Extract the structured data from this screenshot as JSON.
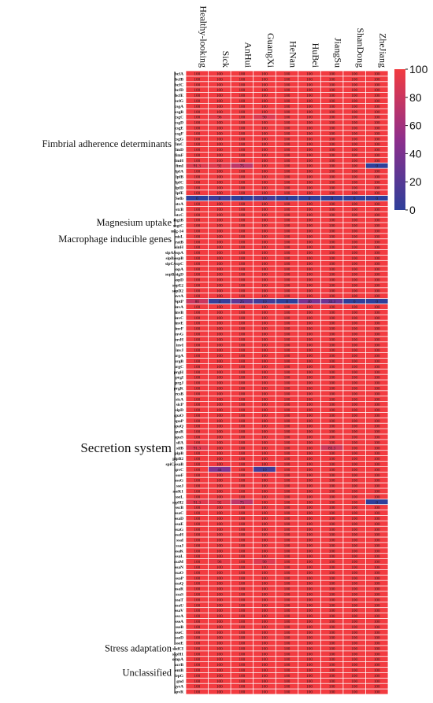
{
  "chart_data": {
    "type": "heatmap",
    "title": "",
    "xlabel": "",
    "ylabel": "",
    "columns": [
      "Healthy-looking",
      "Sick",
      "AnHui",
      "GuangXi",
      "HeNan",
      "HuBei",
      "JiangSu",
      "ShanDong",
      "ZheJiang"
    ],
    "rows": [
      "bcfA",
      "bcfB",
      "bcfC",
      "bcfD",
      "bcfE",
      "bcfG",
      "csgA",
      "csgB",
      "csgC",
      "csgD",
      "csgE",
      "csgF",
      "csgG",
      "fimC",
      "fimD",
      "fimF",
      "fimH",
      "fimI",
      "lpfA",
      "lpfB",
      "lpfC",
      "lpfD",
      "lpfE",
      "Sefb",
      "stcA",
      "stcB",
      "stcC",
      "mgtB",
      "mgtC",
      "mig-14",
      "misL",
      "ratB",
      "sinH",
      "sipA/sspA",
      "sipB/sspB",
      "sipC/sspC",
      "sopA",
      "sopB/sigD",
      "sopD",
      "sopE2",
      "sopD2",
      "avrA",
      "SptP",
      "invA",
      "invB",
      "invC",
      "invE",
      "invF",
      "invG",
      "invH",
      "invI",
      "invJ",
      "orgA",
      "orgB",
      "orgC",
      "prgH",
      "prgI",
      "prgJ",
      "prgK",
      "rcsB",
      "sicA",
      "sicP",
      "sipD",
      "spaO",
      "spaP",
      "spaQ",
      "spaR",
      "spaS",
      "sifA",
      "sifB",
      "pipB",
      "pipB2",
      "spiC/ssaB",
      "spvC",
      "sseF",
      "sseG",
      "sseJ",
      "sseK1",
      "sseL",
      "sspH2",
      "sscB",
      "ssaC",
      "ssaD",
      "ssaE",
      "ssaG",
      "ssaH",
      "ssaI",
      "ssaJ",
      "ssaK",
      "ssaL",
      "ssaM",
      "ssaN",
      "ssaO",
      "ssaP",
      "ssaQ",
      "ssaR",
      "ssaS",
      "ssaT",
      "ssaU",
      "ssaV",
      "sscA",
      "sseA",
      "sseB",
      "sseC",
      "sseD",
      "sseE",
      "sodCI",
      "sspH1",
      "ompA",
      "acrB",
      "entB",
      "fepG",
      "gnd",
      "gyrA",
      "spvR"
    ],
    "default_value": 100,
    "exceptions": [
      {
        "row": "csgC",
        "col": "Sick",
        "value": 96
      },
      {
        "row": "csgC",
        "col": "GuangXi",
        "value": 90
      },
      {
        "row": "fimI",
        "col": "Healthy-looking",
        "value": 91.3
      },
      {
        "row": "fimI",
        "col": "Sick",
        "value": 92
      },
      {
        "row": "fimI",
        "col": "AnHui",
        "value": 75
      },
      {
        "row": "fimI",
        "col": "ZheJiang",
        "value": 0
      },
      {
        "row": "Sefb",
        "col": "Healthy-looking",
        "value": 0
      },
      {
        "row": "Sefb",
        "col": "Sick",
        "value": 8
      },
      {
        "row": "Sefb",
        "col": "AnHui",
        "value": 0
      },
      {
        "row": "Sefb",
        "col": "GuangXi",
        "value": 10
      },
      {
        "row": "Sefb",
        "col": "HeNan",
        "value": 0
      },
      {
        "row": "Sefb",
        "col": "HuBei",
        "value": 0
      },
      {
        "row": "Sefb",
        "col": "JiangSu",
        "value": 0
      },
      {
        "row": "Sefb",
        "col": "ShanDong",
        "value": 0
      },
      {
        "row": "Sefb",
        "col": "ZheJiang",
        "value": 0
      },
      {
        "row": "SptP",
        "col": "Healthy-looking",
        "value": 80
      },
      {
        "row": "SptP",
        "col": "Sick",
        "value": 4
      },
      {
        "row": "SptP",
        "col": "AnHui",
        "value": 25
      },
      {
        "row": "SptP",
        "col": "GuangXi",
        "value": 10
      },
      {
        "row": "SptP",
        "col": "HeNan",
        "value": 0
      },
      {
        "row": "SptP",
        "col": "HuBei",
        "value": 40
      },
      {
        "row": "SptP",
        "col": "JiangSu",
        "value": 33.3
      },
      {
        "row": "SptP",
        "col": "ShanDong",
        "value": 0
      },
      {
        "row": "SptP",
        "col": "ZheJiang",
        "value": 0
      },
      {
        "row": "sifB",
        "col": "Healthy-looking",
        "value": 91.3
      },
      {
        "row": "sifB",
        "col": "JiangSu",
        "value": 83.3
      },
      {
        "row": "spvC",
        "col": "Sick",
        "value": 44
      },
      {
        "row": "spvC",
        "col": "GuangXi",
        "value": 10
      },
      {
        "row": "sspH2",
        "col": "Healthy-looking",
        "value": 91.3
      },
      {
        "row": "sspH2",
        "col": "Sick",
        "value": 92
      },
      {
        "row": "sspH2",
        "col": "AnHui",
        "value": 75
      },
      {
        "row": "sspH2",
        "col": "ZheJiang",
        "value": 0
      },
      {
        "row": "ssaM",
        "col": "Sick",
        "value": 96
      },
      {
        "row": "ssaM",
        "col": "GuangXi",
        "value": 90
      }
    ],
    "groups": [
      {
        "label": "Fimbrial adherence determinants",
        "from": "bcfA",
        "to": "stcC"
      },
      {
        "label": "Magnesium uptake",
        "from": "mgtB",
        "to": "mgtC"
      },
      {
        "label": "Macrophage inducible genes",
        "from": "mig-14",
        "to": "sinH"
      },
      {
        "label": "Secretion system",
        "from": "sipA/sspA",
        "to": "sseE"
      },
      {
        "label": "Stress adaptation",
        "from": "sodCI",
        "to": "sodCI"
      },
      {
        "label": "Unclassified",
        "from": "sspH1",
        "to": "spvR"
      }
    ],
    "colorbar": {
      "min": 0,
      "max": 100,
      "ticks": [
        0,
        20,
        40,
        60,
        80,
        100
      ],
      "low_color": "#2e3f9a",
      "mid_color": "#8e2f8c",
      "high_color": "#f23b40"
    },
    "grid": true,
    "legend": "right"
  }
}
